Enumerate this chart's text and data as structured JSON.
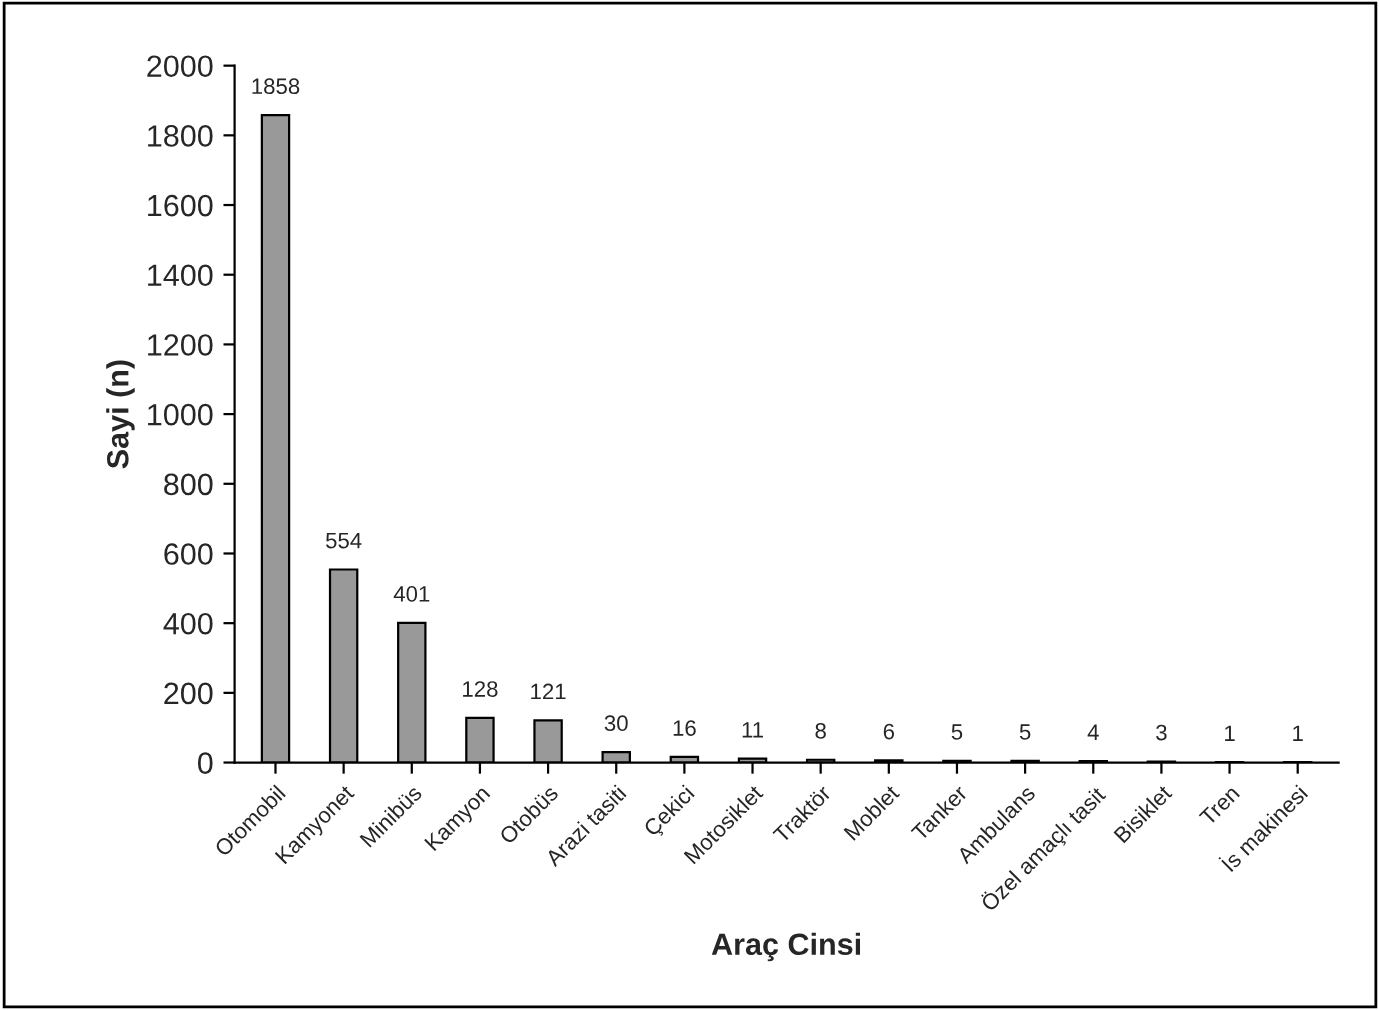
{
  "chart_data": {
    "type": "bar",
    "xlabel": "Araç Cinsi",
    "ylabel": "Sayi (n)",
    "categories": [
      "Otomobil",
      "Kamyonet",
      "Minibüs",
      "Kamyon",
      "Otobüs",
      "Arazi tasiti",
      "Çekici",
      "Motosiklet",
      "Traktör",
      "Moblet",
      "Tanker",
      "Ambulans",
      "Özel amaçlı tasit",
      "Bisiklet",
      "Tren",
      "İs makinesi"
    ],
    "values": [
      1858,
      554,
      401,
      128,
      121,
      30,
      16,
      11,
      8,
      6,
      5,
      5,
      4,
      3,
      1,
      1
    ],
    "color": "#999999",
    "ylim": [
      0,
      2000
    ],
    "yticks": [
      0,
      200,
      400,
      600,
      800,
      1000,
      1200,
      1400,
      1600,
      1800,
      2000
    ],
    "grid": false,
    "legend": false,
    "data_labels": true
  }
}
